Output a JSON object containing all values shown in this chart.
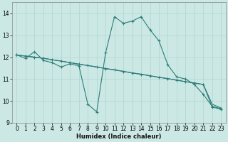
{
  "xlabel": "Humidex (Indice chaleur)",
  "xlim": [
    -0.5,
    23.5
  ],
  "ylim": [
    9.0,
    14.5
  ],
  "yticks": [
    9,
    10,
    11,
    12,
    13,
    14
  ],
  "xticks": [
    0,
    1,
    2,
    3,
    4,
    5,
    6,
    7,
    8,
    9,
    10,
    11,
    12,
    13,
    14,
    15,
    16,
    17,
    18,
    19,
    20,
    21,
    22,
    23
  ],
  "bg_color": "#cce8e5",
  "grid_color": "#b0d8d5",
  "line_color": "#2d7d78",
  "line1_y": [
    12.1,
    11.95,
    12.25,
    11.85,
    11.75,
    11.55,
    11.7,
    11.6,
    9.85,
    9.5,
    12.2,
    13.85,
    13.55,
    13.65,
    13.85,
    13.25,
    12.75,
    11.65,
    11.1,
    11.0,
    10.75,
    10.3,
    9.75,
    9.65
  ],
  "line2_y": [
    12.1,
    12.05,
    12.0,
    11.95,
    11.88,
    11.82,
    11.75,
    11.68,
    11.62,
    11.55,
    11.48,
    11.42,
    11.35,
    11.28,
    11.22,
    11.15,
    11.08,
    11.02,
    10.95,
    10.88,
    10.82,
    10.75,
    9.72,
    9.62
  ],
  "line3_y": [
    12.1,
    12.05,
    12.0,
    11.95,
    11.88,
    11.82,
    11.75,
    11.68,
    11.62,
    11.55,
    11.48,
    11.42,
    11.35,
    11.28,
    11.22,
    11.15,
    11.08,
    11.02,
    10.95,
    10.88,
    10.82,
    10.75,
    9.85,
    9.68
  ]
}
